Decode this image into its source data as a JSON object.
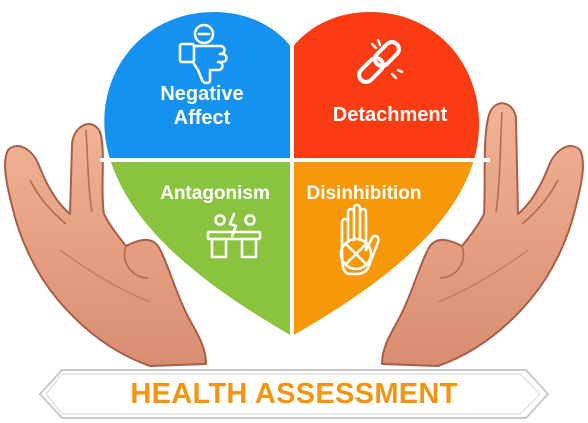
{
  "quadrants": {
    "negative_affect": {
      "line1": "Negative",
      "line2": "Affect",
      "color": "#1591f0",
      "icon": "thumbs-down-hand-icon"
    },
    "detachment": {
      "label": "Detachment",
      "color": "#fb3b12",
      "icon": "broken-chain-link-icon"
    },
    "antagonism": {
      "label": "Antagonism",
      "color": "#8ac43f",
      "icon": "people-arguing-icon"
    },
    "disinhibition": {
      "label": "Disinhibition",
      "color": "#f79808",
      "icon": "stop-hand-icon"
    }
  },
  "banner": {
    "text": "HEALTH ASSESSMENT",
    "text_color": "#f29512"
  },
  "hands": {
    "skin_color": "#e9a184",
    "outline_color": "#a85e47"
  }
}
